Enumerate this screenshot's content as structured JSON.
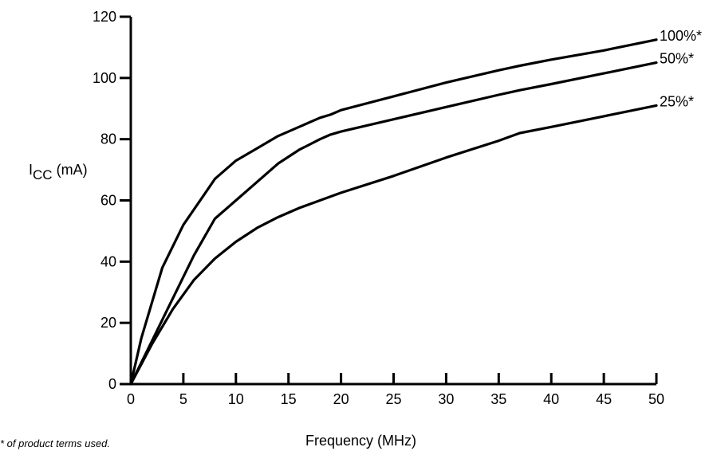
{
  "chart_data": {
    "type": "line",
    "xlabel": "Frequency (MHz)",
    "ylabel_main": "I",
    "ylabel_sub": "CC",
    "ylabel_units": " (mA)",
    "xlim": [
      0,
      50
    ],
    "ylim": [
      0,
      120
    ],
    "xticks": [
      0,
      5,
      10,
      15,
      20,
      25,
      30,
      35,
      40,
      45,
      50
    ],
    "yticks": [
      0,
      20,
      40,
      60,
      80,
      100,
      120
    ],
    "grid": false,
    "series": [
      {
        "name": "100%*",
        "x": [
          0,
          1,
          3,
          5,
          7,
          8,
          10,
          12,
          14,
          16,
          18,
          19,
          20,
          25,
          30,
          35,
          37,
          40,
          45,
          50
        ],
        "y": [
          0,
          15,
          38,
          52,
          62,
          67,
          73,
          77,
          81,
          84,
          87,
          88,
          89.5,
          94,
          98.5,
          102.5,
          104,
          106,
          109,
          112.5
        ]
      },
      {
        "name": "50%*",
        "x": [
          0,
          2,
          4,
          6,
          8,
          10,
          12,
          14,
          16,
          18,
          19,
          20,
          25,
          30,
          35,
          37,
          40,
          45,
          50
        ],
        "y": [
          0,
          14,
          28,
          42,
          54,
          60,
          66,
          72,
          76.5,
          80,
          81.5,
          82.5,
          86.5,
          90.5,
          94.5,
          96,
          98,
          101.5,
          105
        ]
      },
      {
        "name": "25%*",
        "x": [
          0,
          2,
          4,
          6,
          8,
          10,
          12,
          14,
          16,
          18,
          20,
          25,
          30,
          35,
          37,
          40,
          45,
          50
        ],
        "y": [
          0,
          13,
          24.5,
          34,
          41,
          46.5,
          51,
          54.5,
          57.5,
          60,
          62.5,
          68,
          74,
          79.5,
          82,
          84,
          87.5,
          91
        ]
      }
    ]
  },
  "footnote": "* of product terms used."
}
